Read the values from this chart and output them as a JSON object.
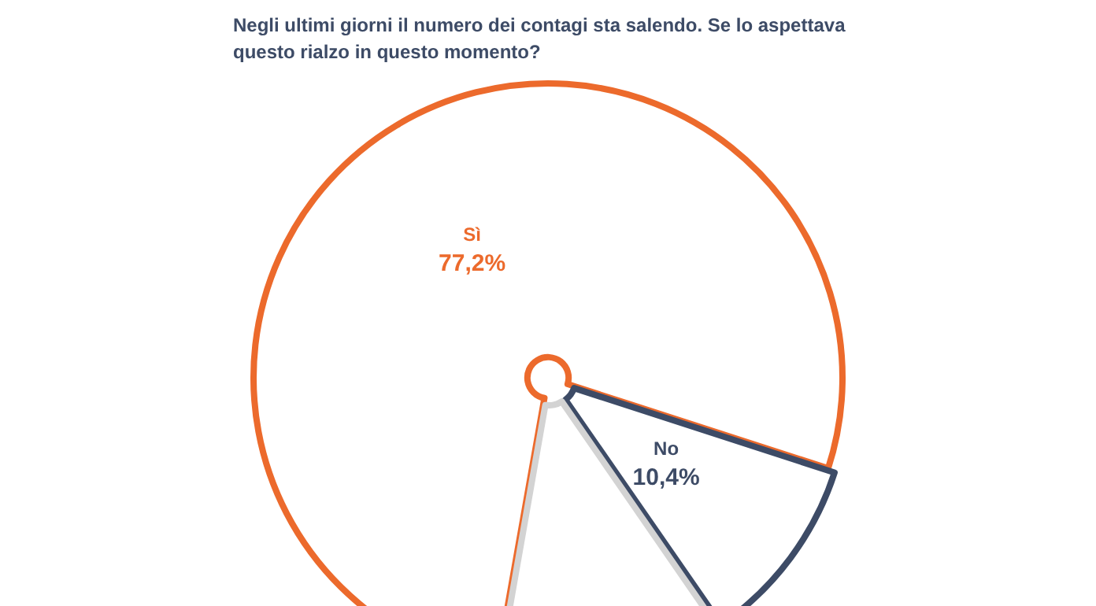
{
  "chart_data": {
    "type": "pie",
    "title": "Negli ultimi giorni il numero dei contagi sta salendo. Se lo aspettava questo rialzo in questo momento?",
    "categories": [
      "Sì",
      "No",
      null
    ],
    "values": [
      77.2,
      10.4,
      12.4
    ],
    "value_labels": [
      "77,2%",
      "10,4%",
      null
    ],
    "colors": [
      "#ec6a2c",
      "#3d4b66",
      "#d3d3d3"
    ]
  }
}
